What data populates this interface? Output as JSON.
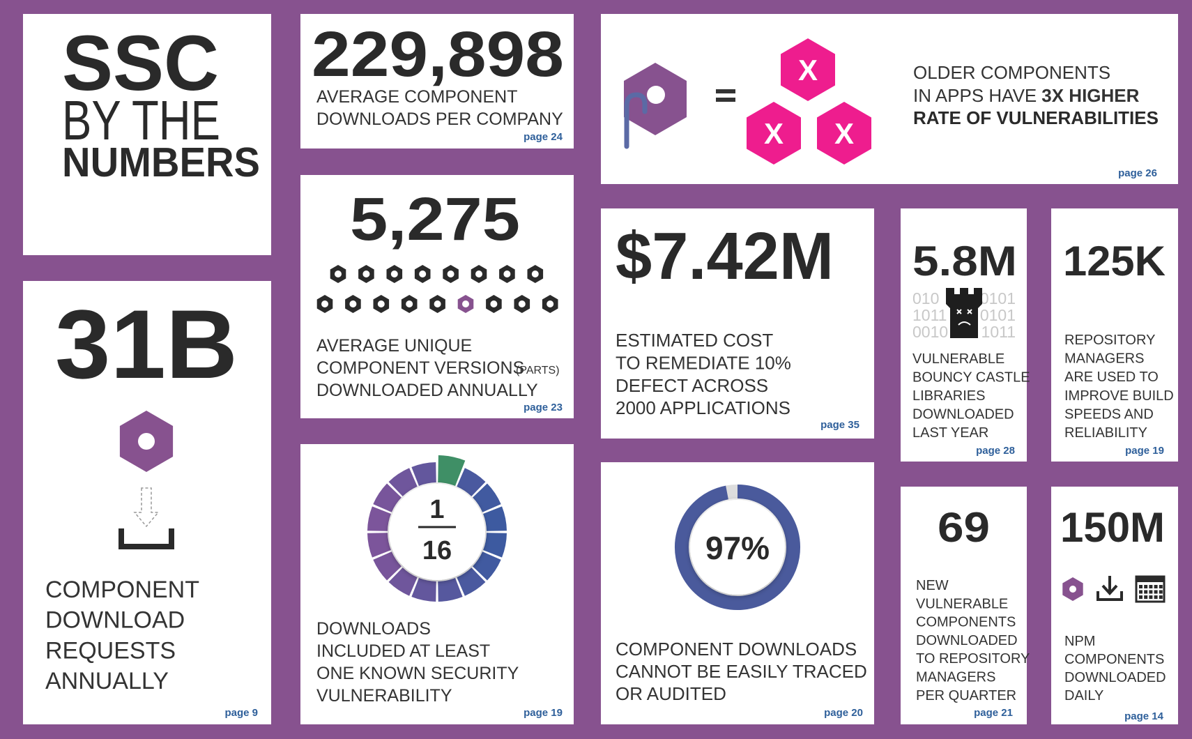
{
  "title": {
    "line1": "SSC",
    "line2": "BY THE",
    "line3": "NUMBERS"
  },
  "downloads_requests": {
    "stat": "31B",
    "label": [
      "COMPONENT",
      "DOWNLOAD",
      "REQUESTS",
      "ANNUALLY"
    ],
    "page": "page 9"
  },
  "avg_downloads": {
    "stat": "229,898",
    "label": [
      "AVERAGE COMPONENT",
      "DOWNLOADS PER COMPANY"
    ],
    "page": "page 24"
  },
  "unique_versions": {
    "stat": "5,275",
    "label": [
      "AVERAGE UNIQUE",
      "COMPONENT VERSIONS",
      "DOWNLOADED ANNUALLY"
    ],
    "label_note": "(PARTS)",
    "page": "page 23"
  },
  "vulnerable_downloads": {
    "numerator": 1,
    "denominator": 16,
    "label": [
      "DOWNLOADS",
      "INCLUDED AT LEAST",
      "ONE KNOWN SECURITY",
      "VULNERABILITY"
    ],
    "page": "page 19"
  },
  "older_components": {
    "line1": "OLDER COMPONENTS",
    "line2": "IN APPS HAVE",
    "line2_bold": "3X HIGHER",
    "line3_bold": "RATE OF VULNERABILITIES",
    "icon_mark": "X",
    "page": "page 26"
  },
  "remediation_cost": {
    "stat": "$7.42M",
    "label": [
      "ESTIMATED COST",
      "TO REMEDIATE 10%",
      "DEFECT ACROSS",
      "2000 APPLICATIONS"
    ],
    "page": "page 35"
  },
  "untraceable": {
    "percent": {
      "value": 97,
      "label": "97%"
    },
    "label": [
      "COMPONENT DOWNLOADS",
      "CANNOT BE EASILY TRACED",
      "OR AUDITED"
    ],
    "page": "page 20"
  },
  "bouncy_castle": {
    "stat": "5.8M",
    "binary_left": [
      "010",
      "1011",
      "0010"
    ],
    "binary_right": [
      "0101",
      "0101",
      "1011"
    ],
    "label": [
      "VULNERABLE",
      "BOUNCY CASTLE",
      "LIBRARIES",
      "DOWNLOADED",
      "LAST YEAR"
    ],
    "page": "page 28"
  },
  "repository_managers": {
    "stat": "125K",
    "label": [
      "REPOSITORY",
      "MANAGERS",
      "ARE USED TO",
      "IMPROVE BUILD",
      "SPEEDS AND",
      "RELIABILITY"
    ],
    "page": "page 19"
  },
  "new_vulnerable": {
    "stat": "69",
    "label": [
      "NEW",
      "VULNERABLE",
      "COMPONENTS",
      "DOWNLOADED",
      "TO REPOSITORY",
      "MANAGERS",
      "PER QUARTER"
    ],
    "page": "page 21"
  },
  "npm": {
    "stat": "150M",
    "label": [
      "NPM",
      "COMPONENTS",
      "DOWNLOADED",
      "DAILY"
    ],
    "page": "page 14"
  }
}
